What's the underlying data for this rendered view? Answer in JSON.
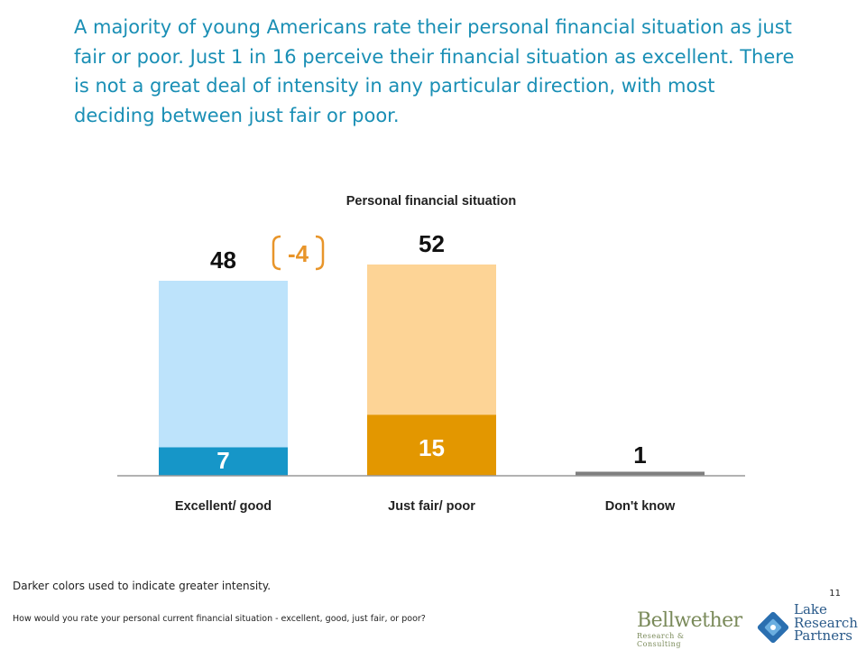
{
  "headline": "A majority of young Americans rate their personal financial situation as just fair or poor. Just 1 in 16 perceive their financial situation as excellent. There is not a great deal of intensity in any particular direction, with most deciding between just fair or poor.",
  "chart_data": {
    "type": "bar",
    "title": "Personal financial situation",
    "categories": [
      "Excellent/ good",
      "Just fair/ poor",
      "Don't know"
    ],
    "totals": [
      48,
      52,
      1
    ],
    "intense": [
      7,
      15,
      null
    ],
    "total_labels": [
      "48",
      "52",
      ""
    ],
    "intense_labels": [
      "7",
      "15",
      "1"
    ],
    "difference_label": "-4",
    "colors": {
      "excellent_light": "#bde3fb",
      "excellent_dark": "#1696c8",
      "fair_light": "#fdd496",
      "fair_dark": "#e39700",
      "dontknow": "#7f7f7f",
      "difference": "#e8952a",
      "headline": "#1a8fb5"
    },
    "ylim": [
      0,
      60
    ]
  },
  "footer": {
    "note": "Darker colors used to indicate greater intensity.",
    "page_number": "11",
    "question": "How would you rate your personal current financial situation - excellent, good, just fair, or poor?"
  },
  "logos": {
    "bellwether_main": "Bellwether",
    "bellwether_sub": "Research & Consulting",
    "lake_lines": [
      "Lake",
      "Research",
      "Partners"
    ]
  }
}
